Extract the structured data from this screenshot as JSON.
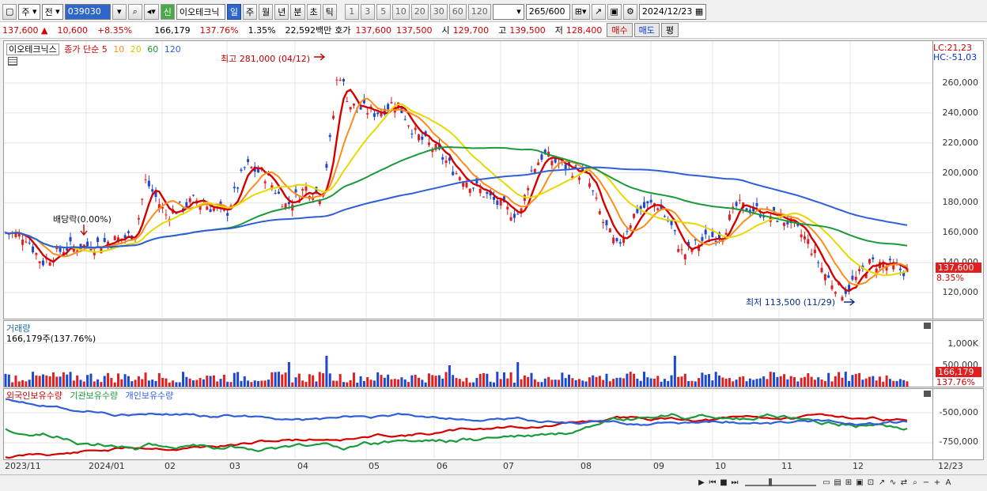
{
  "toolbar": {
    "market": "주",
    "prefix": "전",
    "code": "039030",
    "name": "이오테크닉",
    "tag_new": "신",
    "periods": [
      "일",
      "주",
      "월",
      "년",
      "분",
      "초",
      "틱"
    ],
    "intervals": [
      "1",
      "3",
      "5",
      "10",
      "20",
      "30",
      "60",
      "120"
    ],
    "count": "265",
    "count_max": "/600",
    "date": "2024/12/23"
  },
  "quote": {
    "price": "137,600",
    "arrow": "▲",
    "change": "10,600",
    "change_pct": "+8.35%",
    "volume": "166,179",
    "vol_ratio": "137.76%",
    "turnover": "1.35%",
    "amount": "22,592백만",
    "bidask_label": "호가",
    "ask": "137,600",
    "bid": "137,500",
    "open_label": "시",
    "open": "129,700",
    "high_label": "고",
    "high": "139,500",
    "low_label": "저",
    "low": "128,400",
    "buy": "매수",
    "sell": "매도",
    "eval": "평"
  },
  "price_pane": {
    "name": "이오테크닉스",
    "legend_label": "종가 단순",
    "ma": [
      {
        "p": "5",
        "c": "#d40000"
      },
      {
        "p": "10",
        "c": "#ff8c1a"
      },
      {
        "p": "20",
        "c": "#e8d800"
      },
      {
        "p": "60",
        "c": "#1a9a3a"
      },
      {
        "p": "120",
        "c": "#2f5fd8"
      }
    ],
    "high_note": "최고 281,000 (04/12)",
    "low_note": "최저 113,500 (11/29)",
    "div_note": "배당락(0.00%)",
    "lc": "LC:21,23",
    "hc": "HC:-51,03",
    "yticks": [
      "260,000",
      "240,000",
      "220,000",
      "200,000",
      "180,000",
      "160,000",
      "140,000",
      "120,000"
    ],
    "last_tag": "137,600",
    "last_pct": "8.35%"
  },
  "volume_pane": {
    "title": "거래량",
    "value": "166,179주(137.76%)",
    "yticks": [
      "1,000K",
      "500,000"
    ],
    "last_tag": "166,179",
    "last_pct": "137.76%"
  },
  "holding_pane": {
    "legend": [
      {
        "label": "외국인보유수량",
        "c": "#d40000"
      },
      {
        "label": "기관보유수량",
        "c": "#1a9a3a"
      },
      {
        "label": "개인보유수량",
        "c": "#2f5fd8"
      }
    ],
    "yticks": [
      "-500,000",
      "-750,000"
    ]
  },
  "xaxis": {
    "labels": [
      "2023/11",
      "2024/01",
      "02",
      "03",
      "04",
      "05",
      "06",
      "07",
      "08",
      "09",
      "10",
      "11",
      "12",
      "12/23"
    ]
  },
  "colors": {
    "up": "#e02020",
    "down": "#1c48d0"
  }
}
